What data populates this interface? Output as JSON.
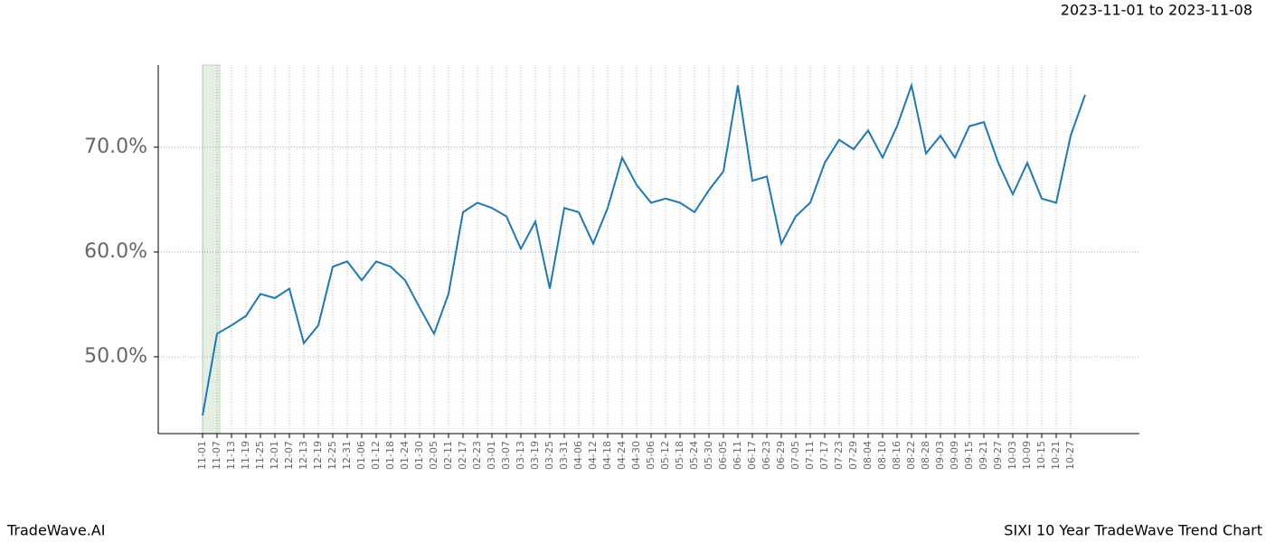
{
  "chart_data": {
    "type": "line",
    "title": "2023-11-01 to 2023-11-08",
    "footer_left": "TradeWave.AI",
    "footer_right": "SIXI 10 Year TradeWave Trend Chart",
    "categories": [
      "11-01",
      "11-07",
      "11-13",
      "11-19",
      "11-25",
      "12-01",
      "12-07",
      "12-13",
      "12-19",
      "12-25",
      "12-31",
      "01-06",
      "01-12",
      "01-18",
      "01-24",
      "01-30",
      "02-05",
      "02-11",
      "02-17",
      "02-23",
      "03-01",
      "03-07",
      "03-13",
      "03-19",
      "03-25",
      "03-31",
      "04-06",
      "04-12",
      "04-18",
      "04-24",
      "04-30",
      "05-06",
      "05-12",
      "05-18",
      "05-24",
      "05-30",
      "06-05",
      "06-11",
      "06-17",
      "06-23",
      "06-29",
      "07-05",
      "07-11",
      "07-17",
      "07-23",
      "07-29",
      "08-04",
      "08-10",
      "08-16",
      "08-22",
      "08-28",
      "09-03",
      "09-09",
      "09-15",
      "09-21",
      "09-27",
      "10-03",
      "10-09",
      "10-15",
      "10-21",
      "10-27",
      null
    ],
    "series": [
      {
        "color": "#1f77b4",
        "values": [
          44.4,
          52.2,
          53.0,
          53.9,
          56.0,
          55.6,
          56.5,
          51.3,
          53.0,
          58.6,
          59.1,
          57.3,
          59.1,
          58.6,
          57.3,
          54.7,
          52.2,
          56.0,
          63.8,
          64.7,
          64.2,
          63.4,
          60.3,
          62.9,
          56.5,
          64.2,
          63.8,
          60.8,
          64.2,
          69.0,
          66.4,
          64.7,
          65.1,
          64.7,
          63.8,
          65.9,
          67.7,
          75.9,
          66.8,
          67.2,
          60.8,
          63.4,
          64.7,
          68.5,
          70.7,
          69.8,
          71.6,
          69.0,
          72.0,
          75.9,
          69.4,
          71.1,
          69.0,
          72.0,
          72.4,
          68.5,
          65.5,
          68.5,
          65.1,
          64.7,
          71.1,
          75.0
        ]
      }
    ],
    "ylim": [
      42.67,
      77.84
    ],
    "yticks": [
      {
        "value": 50,
        "label": "50.0%"
      },
      {
        "value": 60,
        "label": "60.0%"
      },
      {
        "value": 70,
        "label": "70.0%"
      }
    ],
    "grid": true,
    "shaded_span": {
      "from": "11-01",
      "to": "11-07",
      "color": "#e3efe3"
    }
  }
}
